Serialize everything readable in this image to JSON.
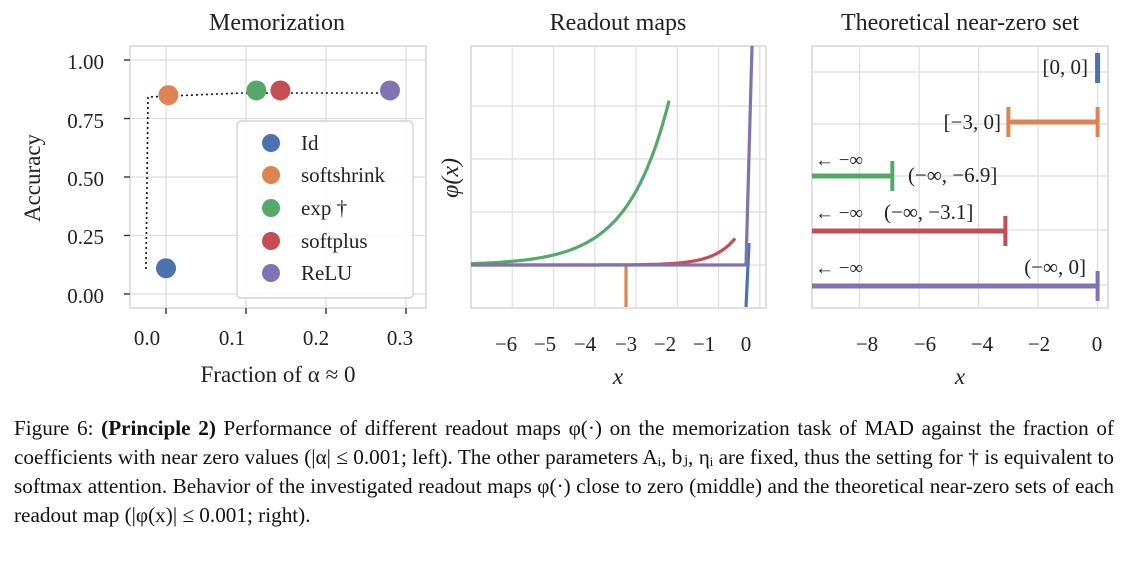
{
  "figure": {
    "panels": [
      {
        "title": "Memorization",
        "xlabel": "Fraction of α ≈ 0",
        "ylabel": "Accuracy",
        "xticks": [
          "0.0",
          "0.1",
          "0.2",
          "0.3"
        ],
        "yticks": [
          "0.00",
          "0.25",
          "0.50",
          "0.75",
          "1.00"
        ]
      },
      {
        "title": "Readout maps",
        "xlabel": "x",
        "ylabel": "φ(x)",
        "xticks": [
          "−6",
          "−5",
          "−4",
          "−3",
          "−2",
          "−1",
          "0"
        ]
      },
      {
        "title": "Theoretical near-zero set",
        "xlabel": "x",
        "xticks": [
          "−8",
          "−6",
          "−4",
          "−2",
          "0"
        ]
      }
    ],
    "legend": [
      "Id",
      "softshrink",
      "exp †",
      "softplus",
      "ReLU"
    ],
    "set_labels": [
      "[0, 0]",
      "[−3, 0]",
      "(−∞, −6.9]",
      "(−∞, −3.1]",
      "(−∞, 0]"
    ],
    "arrow_label": "← −∞"
  },
  "chart_data": [
    {
      "type": "scatter",
      "title": "Memorization",
      "xlabel": "Fraction of α ≈ 0",
      "ylabel": "Accuracy",
      "xlim": [
        -0.045,
        0.325
      ],
      "ylim": [
        -0.06,
        1.06
      ],
      "series": [
        {
          "name": "Id",
          "x": 0.0,
          "y": 0.11,
          "color": "#4c72b0"
        },
        {
          "name": "softshrink",
          "x": 0.003,
          "y": 0.85,
          "color": "#dd8452"
        },
        {
          "name": "exp †",
          "x": 0.113,
          "y": 0.87,
          "color": "#55a868"
        },
        {
          "name": "softplus",
          "x": 0.143,
          "y": 0.87,
          "color": "#c44e52"
        },
        {
          "name": "ReLU",
          "x": 0.28,
          "y": 0.87,
          "color": "#8172b3"
        }
      ],
      "grid": true,
      "legend_position": "center-right"
    },
    {
      "type": "line",
      "title": "Readout maps",
      "xlabel": "x",
      "ylabel": "φ(x)",
      "xlim": [
        -7,
        0.15
      ],
      "series": [
        {
          "name": "Id",
          "color": "#4c72b0"
        },
        {
          "name": "softshrink",
          "color": "#dd8452"
        },
        {
          "name": "exp †",
          "color": "#55a868"
        },
        {
          "name": "softplus",
          "color": "#c44e52"
        },
        {
          "name": "ReLU",
          "color": "#8172b3"
        }
      ],
      "grid": true
    },
    {
      "type": "bar",
      "title": "Theoretical near-zero set",
      "xlabel": "x",
      "xlim": [
        -9.6,
        0.35
      ],
      "intervals": [
        {
          "name": "Id",
          "start": 0,
          "end": 0,
          "label": "[0, 0]",
          "color": "#4c72b0"
        },
        {
          "name": "softshrink",
          "start": -3,
          "end": 0,
          "label": "[−3, 0]",
          "color": "#dd8452"
        },
        {
          "name": "exp †",
          "start": null,
          "end": -6.9,
          "label": "(−∞, −6.9]",
          "color": "#55a868"
        },
        {
          "name": "softplus",
          "start": null,
          "end": -3.1,
          "label": "(−∞, −3.1]",
          "color": "#c44e52"
        },
        {
          "name": "ReLU",
          "start": null,
          "end": 0,
          "label": "(−∞, 0]",
          "color": "#8172b3"
        }
      ],
      "grid": true
    }
  ],
  "caption": {
    "figure_label": "Figure 6:",
    "principle": "(Principle 2)",
    "text": " Performance of different readout maps φ(·) on the memorization task of MAD against the fraction of coefficients with near zero values (|α| ≤ 0.001; left). The other parameters Aᵢ, bⱼ, ηᵢ are fixed, thus the setting for † is equivalent to softmax attention. Behavior of the investigated readout maps φ(·) close to zero (middle) and the theoretical near-zero sets of each readout map (|φ(x)| ≤ 0.001; right)."
  }
}
